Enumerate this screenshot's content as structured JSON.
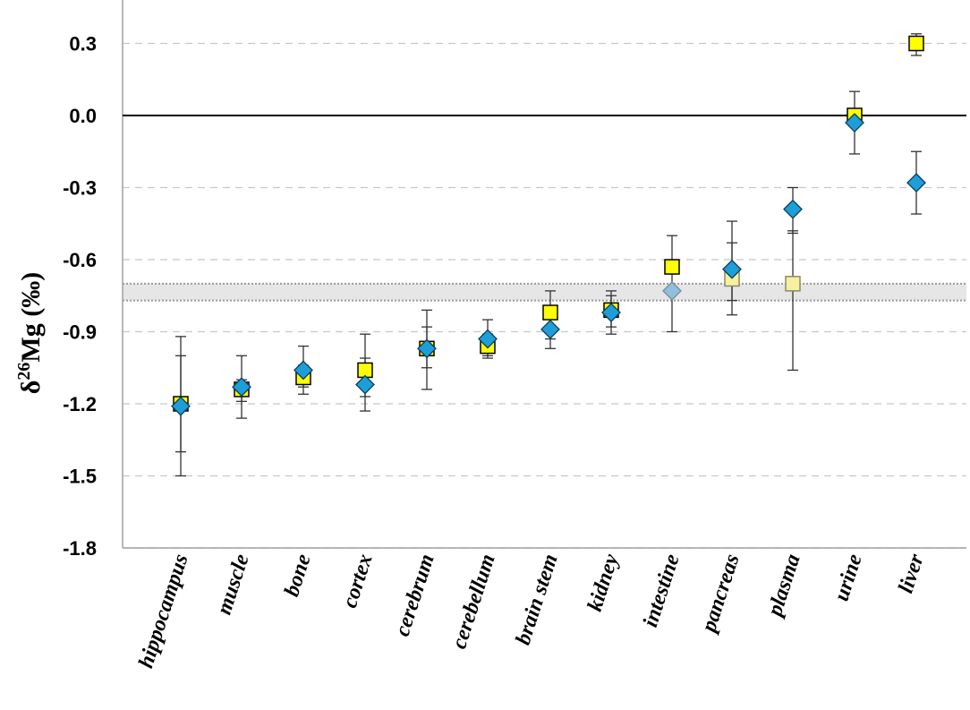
{
  "chart_data": {
    "type": "scatter",
    "title": "",
    "xlabel": "",
    "ylabel": {
      "prefix": "δ",
      "sup": "26",
      "main": "Mg (‰)"
    },
    "ylim": [
      -1.8,
      0.45
    ],
    "yticks": [
      0.3,
      0.0,
      -0.3,
      -0.6,
      -0.9,
      -1.2,
      -1.5,
      -1.8
    ],
    "ytick_labels": [
      "0.3",
      "0.0",
      "-0.3",
      "-0.6",
      "-0.9",
      "-1.2",
      "-1.5",
      "-1.8"
    ],
    "grid": "horizontal dashed",
    "categories": [
      "hippocampus",
      "muscle",
      "bone",
      "cortex",
      "cerebrum",
      "cerebellum",
      "brain stem",
      "kidney",
      "intestine",
      "pancreas",
      "plasma",
      "urine",
      "liver"
    ],
    "reference_band": {
      "low": -0.77,
      "high": -0.7,
      "color": "#e6e6e6"
    },
    "reference_line": 0.0,
    "series": [
      {
        "name": "squares",
        "marker": "square",
        "color": "#ffff00",
        "values": [
          -1.2,
          -1.14,
          -1.09,
          -1.06,
          -0.97,
          -0.96,
          -0.82,
          -0.81,
          -0.63,
          -0.68,
          -0.7,
          0.0,
          0.3
        ],
        "err_low": [
          -1.4,
          -1.19,
          -1.13,
          -1.23,
          -1.14,
          -1.01,
          -0.93,
          -0.91,
          -0.9,
          -0.83,
          -1.06,
          null,
          0.25
        ],
        "err_high": [
          -1.0,
          -1.1,
          -1.04,
          -0.91,
          -0.81,
          -0.91,
          -0.73,
          -0.73,
          -0.5,
          -0.53,
          -0.48,
          null,
          0.34
        ],
        "faded": [
          false,
          false,
          false,
          false,
          false,
          false,
          false,
          false,
          false,
          true,
          true,
          false,
          false
        ]
      },
      {
        "name": "diamonds",
        "marker": "diamond",
        "color": "#1e9ed9",
        "values": [
          -1.21,
          -1.13,
          -1.06,
          -1.12,
          -0.97,
          -0.93,
          -0.89,
          -0.82,
          -0.73,
          -0.64,
          -0.39,
          -0.03,
          -0.28
        ],
        "err_low": [
          -1.5,
          -1.26,
          -1.16,
          -1.17,
          -1.05,
          -1.0,
          -0.97,
          -0.88,
          null,
          -0.77,
          -0.49,
          -0.16,
          -0.41
        ],
        "err_high": [
          -0.92,
          -1.0,
          -0.96,
          -1.01,
          -0.88,
          -0.85,
          -0.82,
          -0.75,
          null,
          -0.44,
          -0.3,
          0.1,
          -0.15
        ],
        "faded": [
          false,
          false,
          false,
          false,
          false,
          false,
          false,
          false,
          true,
          false,
          false,
          false,
          false
        ]
      }
    ]
  }
}
